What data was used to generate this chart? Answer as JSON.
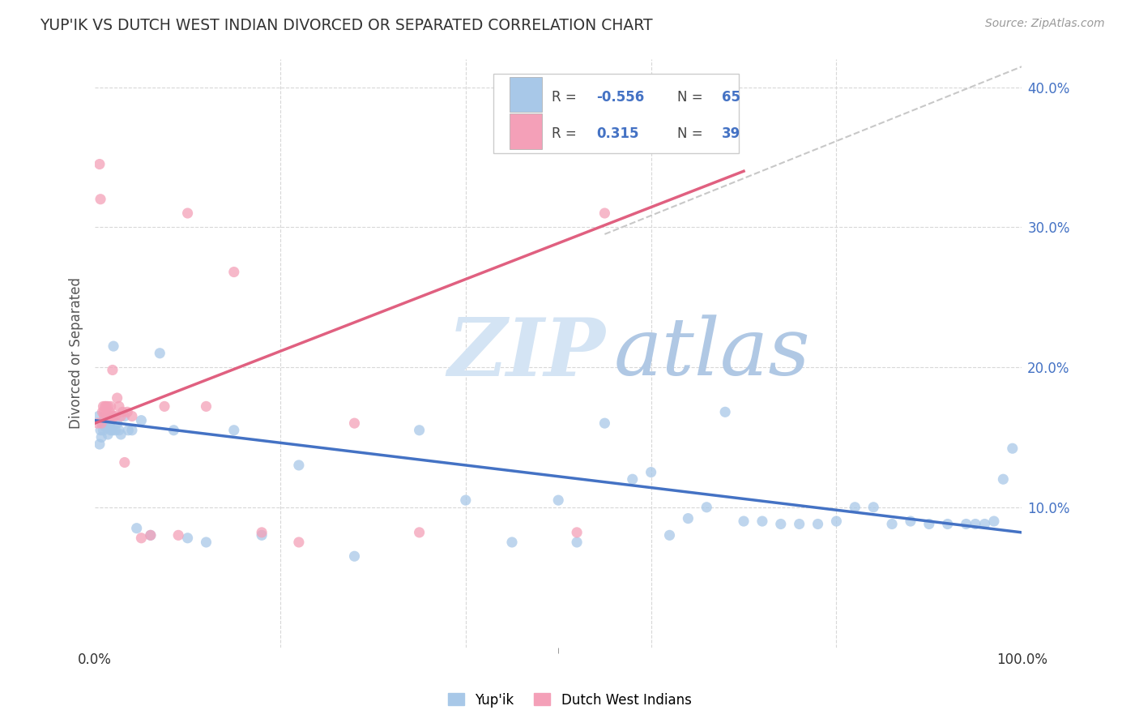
{
  "title": "YUP'IK VS DUTCH WEST INDIAN DIVORCED OR SEPARATED CORRELATION CHART",
  "source": "Source: ZipAtlas.com",
  "ylabel": "Divorced or Separated",
  "xlim": [
    0,
    1.0
  ],
  "ylim": [
    0,
    0.42
  ],
  "R1": "-0.556",
  "N1": "65",
  "R2": "0.315",
  "N2": "39",
  "color_blue": "#a8c8e8",
  "color_pink": "#f4a0b8",
  "color_blue_line": "#4472c4",
  "color_pink_line": "#e06080",
  "color_dashed": "#c8c8c8",
  "color_text_blue": "#4472c4",
  "color_watermark_zip": "#c8d8f0",
  "color_watermark_atlas": "#a0b8d8",
  "background_color": "#ffffff",
  "blue_points_x": [
    0.004,
    0.005,
    0.006,
    0.007,
    0.008,
    0.009,
    0.01,
    0.011,
    0.012,
    0.013,
    0.014,
    0.015,
    0.016,
    0.017,
    0.018,
    0.019,
    0.02,
    0.022,
    0.024,
    0.026,
    0.028,
    0.032,
    0.036,
    0.04,
    0.045,
    0.05,
    0.06,
    0.07,
    0.085,
    0.1,
    0.12,
    0.15,
    0.18,
    0.22,
    0.28,
    0.35,
    0.4,
    0.45,
    0.5,
    0.52,
    0.55,
    0.58,
    0.6,
    0.62,
    0.64,
    0.66,
    0.68,
    0.7,
    0.72,
    0.74,
    0.76,
    0.78,
    0.8,
    0.82,
    0.84,
    0.86,
    0.88,
    0.9,
    0.92,
    0.94,
    0.95,
    0.96,
    0.97,
    0.98,
    0.99
  ],
  "blue_points_y": [
    0.165,
    0.145,
    0.155,
    0.15,
    0.16,
    0.155,
    0.162,
    0.158,
    0.157,
    0.163,
    0.152,
    0.16,
    0.158,
    0.155,
    0.162,
    0.155,
    0.215,
    0.155,
    0.16,
    0.155,
    0.152,
    0.165,
    0.155,
    0.155,
    0.085,
    0.162,
    0.08,
    0.21,
    0.155,
    0.078,
    0.075,
    0.155,
    0.08,
    0.13,
    0.065,
    0.155,
    0.105,
    0.075,
    0.105,
    0.075,
    0.16,
    0.12,
    0.125,
    0.08,
    0.092,
    0.1,
    0.168,
    0.09,
    0.09,
    0.088,
    0.088,
    0.088,
    0.09,
    0.1,
    0.1,
    0.088,
    0.09,
    0.088,
    0.088,
    0.088,
    0.088,
    0.088,
    0.09,
    0.12,
    0.142
  ],
  "pink_points_x": [
    0.003,
    0.005,
    0.006,
    0.007,
    0.008,
    0.009,
    0.01,
    0.01,
    0.011,
    0.012,
    0.013,
    0.014,
    0.015,
    0.016,
    0.017,
    0.018,
    0.019,
    0.02,
    0.022,
    0.024,
    0.026,
    0.028,
    0.03,
    0.032,
    0.035,
    0.04,
    0.05,
    0.06,
    0.075,
    0.09,
    0.1,
    0.12,
    0.15,
    0.18,
    0.22,
    0.28,
    0.35,
    0.52,
    0.55
  ],
  "pink_points_y": [
    0.16,
    0.345,
    0.32,
    0.16,
    0.168,
    0.172,
    0.165,
    0.168,
    0.172,
    0.172,
    0.165,
    0.172,
    0.165,
    0.168,
    0.172,
    0.165,
    0.198,
    0.165,
    0.165,
    0.178,
    0.172,
    0.165,
    0.168,
    0.132,
    0.168,
    0.165,
    0.078,
    0.08,
    0.172,
    0.08,
    0.31,
    0.172,
    0.268,
    0.082,
    0.075,
    0.16,
    0.082,
    0.082,
    0.31
  ],
  "blue_line_x0": 0.0,
  "blue_line_x1": 1.0,
  "blue_line_y0": 0.162,
  "blue_line_y1": 0.082,
  "pink_line_x0": 0.0,
  "pink_line_x1": 0.7,
  "pink_line_y0": 0.16,
  "pink_line_y1": 0.34,
  "dash_line_x0": 0.55,
  "dash_line_x1": 1.02,
  "dash_line_y0": 0.295,
  "dash_line_y1": 0.42
}
